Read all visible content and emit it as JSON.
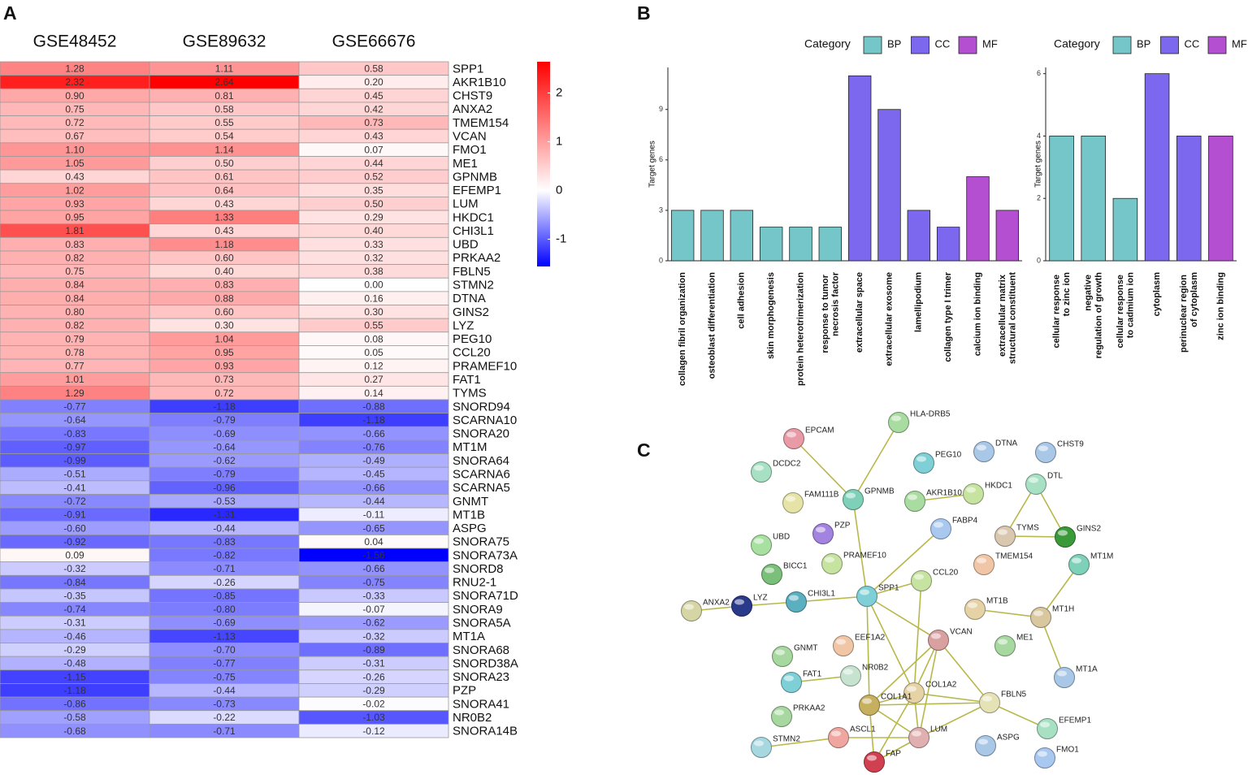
{
  "chart_data": [
    {
      "type": "heatmap",
      "panel": "A",
      "x": [
        "GSE48452",
        "GSE89632",
        "GSE66676"
      ],
      "y": [
        "SPP1",
        "AKR1B10",
        "CHST9",
        "ANXA2",
        "TMEM154",
        "VCAN",
        "FMO1",
        "ME1",
        "GPNMB",
        "EFEMP1",
        "LUM",
        "HKDC1",
        "CHI3L1",
        "UBD",
        "PRKAA2",
        "FBLN5",
        "STMN2",
        "DTNA",
        "GINS2",
        "LYZ",
        "PEG10",
        "CCL20",
        "PRAMEF10",
        "FAT1",
        "TYMS",
        "SNORD94",
        "SCARNA10",
        "SNORA20",
        "MT1M",
        "SNORA64",
        "SCARNA6",
        "SCARNA5",
        "GNMT",
        "MT1B",
        "ASPG",
        "SNORA75",
        "SNORA73A",
        "SNORD8",
        "RNU2-1",
        "SNORA71D",
        "SNORA9",
        "SNORA5A",
        "MT1A",
        "SNORA68",
        "SNORD38A",
        "SNORA23",
        "PZP",
        "SNORA41",
        "NR0B2",
        "SNORA14B"
      ],
      "values": [
        [
          1.28,
          1.11,
          0.58
        ],
        [
          2.32,
          2.64,
          0.2
        ],
        [
          0.9,
          0.81,
          0.45
        ],
        [
          0.75,
          0.58,
          0.42
        ],
        [
          0.72,
          0.55,
          0.73
        ],
        [
          0.67,
          0.54,
          0.43
        ],
        [
          1.1,
          1.14,
          0.07
        ],
        [
          1.05,
          0.5,
          0.44
        ],
        [
          0.43,
          0.61,
          0.52
        ],
        [
          1.02,
          0.64,
          0.35
        ],
        [
          0.93,
          0.43,
          0.5
        ],
        [
          0.95,
          1.33,
          0.29
        ],
        [
          1.81,
          0.43,
          0.4
        ],
        [
          0.83,
          1.18,
          0.33
        ],
        [
          0.82,
          0.6,
          0.32
        ],
        [
          0.75,
          0.4,
          0.38
        ],
        [
          0.84,
          0.83,
          0
        ],
        [
          0.84,
          0.88,
          0.16
        ],
        [
          0.8,
          0.6,
          0.3
        ],
        [
          0.82,
          0.3,
          0.55
        ],
        [
          0.79,
          1.04,
          0.08
        ],
        [
          0.78,
          0.95,
          0.05
        ],
        [
          0.77,
          0.93,
          0.12
        ],
        [
          1.01,
          0.73,
          0.27
        ],
        [
          1.29,
          0.72,
          0.14
        ],
        [
          -0.77,
          -1.18,
          -0.88
        ],
        [
          -0.64,
          -0.79,
          -1.18
        ],
        [
          -0.83,
          -0.69,
          -0.66
        ],
        [
          -0.97,
          -0.64,
          -0.76
        ],
        [
          -0.99,
          -0.62,
          -0.49
        ],
        [
          -0.51,
          -0.79,
          -0.45
        ],
        [
          -0.41,
          -0.96,
          -0.66
        ],
        [
          -0.72,
          -0.53,
          -0.44
        ],
        [
          -0.91,
          -1.31,
          -0.11
        ],
        [
          -0.6,
          -0.44,
          -0.65
        ],
        [
          -0.92,
          -0.83,
          0.04
        ],
        [
          0.09,
          -0.82,
          -1.56
        ],
        [
          -0.32,
          -0.71,
          -0.66
        ],
        [
          -0.84,
          -0.26,
          -0.75
        ],
        [
          -0.35,
          -0.85,
          -0.33
        ],
        [
          -0.74,
          -0.8,
          -0.07
        ],
        [
          -0.31,
          -0.69,
          -0.62
        ],
        [
          -0.46,
          -1.13,
          -0.32
        ],
        [
          -0.29,
          -0.7,
          -0.89
        ],
        [
          -0.48,
          -0.77,
          -0.31
        ],
        [
          -1.15,
          -0.75,
          -0.26
        ],
        [
          -1.18,
          -0.44,
          -0.29
        ],
        [
          -0.86,
          -0.73,
          -0.02
        ],
        [
          -0.58,
          -0.22,
          -1.03
        ],
        [
          -0.68,
          -0.71,
          -0.12
        ]
      ],
      "value_labels": [
        [
          "1.28",
          "1.11",
          "0.58"
        ],
        [
          "2.32",
          "2.64",
          "0.20"
        ],
        [
          "0.90",
          "0.81",
          "0.45"
        ],
        [
          "0.75",
          "0.58",
          "0.42"
        ],
        [
          "0.72",
          "0.55",
          "0.73"
        ],
        [
          "0.67",
          "0.54",
          "0.43"
        ],
        [
          "1.10",
          "1.14",
          "0.07"
        ],
        [
          "1.05",
          "0.50",
          "0.44"
        ],
        [
          "0.43",
          "0.61",
          "0.52"
        ],
        [
          "1.02",
          "0.64",
          "0.35"
        ],
        [
          "0.93",
          "0.43",
          "0.50"
        ],
        [
          "0.95",
          "1.33",
          "0.29"
        ],
        [
          "1.81",
          "0.43",
          "0.40"
        ],
        [
          "0.83",
          "1.18",
          "0.33"
        ],
        [
          "0.82",
          "0.60",
          "0.32"
        ],
        [
          "0.75",
          "0.40",
          "0.38"
        ],
        [
          "0.84",
          "0.83",
          "0.00"
        ],
        [
          "0.84",
          "0.88",
          "0.16"
        ],
        [
          "0.80",
          "0.60",
          "0.30"
        ],
        [
          "0.82",
          "0.30",
          "0.55"
        ],
        [
          "0.79",
          "1.04",
          "0.08"
        ],
        [
          "0.78",
          "0.95",
          "0.05"
        ],
        [
          "0.77",
          "0.93",
          "0.12"
        ],
        [
          "1.01",
          "0.73",
          "0.27"
        ],
        [
          "1.29",
          "0.72",
          "0.14"
        ],
        [
          "-0.77",
          "-1.18",
          "-0.88"
        ],
        [
          "-0.64",
          "-0.79",
          "-1.18"
        ],
        [
          "-0.83",
          "-0.69",
          "-0.66"
        ],
        [
          "-0.97",
          "-0.64",
          "-0.76"
        ],
        [
          "-0.99",
          "-0.62",
          "-0.49"
        ],
        [
          "-0.51",
          "-0.79",
          "-0.45"
        ],
        [
          "-0.41",
          "-0.96",
          "-0.66"
        ],
        [
          "-0.72",
          "-0.53",
          "-0.44"
        ],
        [
          "-0.91",
          "-1.31",
          "-0.11"
        ],
        [
          "-0.60",
          "-0.44",
          "-0.65"
        ],
        [
          "-0.92",
          "-0.83",
          "0.04"
        ],
        [
          "0.09",
          "-0.82",
          "-1.56"
        ],
        [
          "-0.32",
          "-0.71",
          "-0.66"
        ],
        [
          "-0.84",
          "-0.26",
          "-0.75"
        ],
        [
          "-0.35",
          "-0.85",
          "-0.33"
        ],
        [
          "-0.74",
          "-0.80",
          "-0.07"
        ],
        [
          "-0.31",
          "-0.69",
          "-0.62"
        ],
        [
          "-0.46",
          "-1.13",
          "-0.32"
        ],
        [
          "-0.29",
          "-0.70",
          "-0.89"
        ],
        [
          "-0.48",
          "-0.77",
          "-0.31"
        ],
        [
          "-1.15",
          "-0.75",
          "-0.26"
        ],
        [
          "-1.18",
          "-0.44",
          "-0.29"
        ],
        [
          "-0.86",
          "-0.73",
          "-0.02"
        ],
        [
          "-0.58",
          "-0.22",
          "-1.03"
        ],
        [
          "-0.68",
          "-0.71",
          "-0.12"
        ]
      ],
      "zlim": [
        -1.56,
        2.64
      ],
      "zticks": [
        -1,
        0,
        1,
        2
      ],
      "colors": [
        "#0000ff",
        "#ffffff",
        "#ff0000"
      ]
    },
    {
      "type": "bar",
      "panel": "B",
      "ylabel": "Target genes",
      "categories": [
        "collagen fibril organization",
        "osteoblast differentiation",
        "cell adhesion",
        "skin morphogenesis",
        "protein heterotrimerization",
        "response to tumor necrosis factor",
        "extracellular space",
        "extracellular exosome",
        "lamellipodium",
        "collagen type I trimer",
        "calcium ion binding",
        "extracellular matrix structural constituent"
      ],
      "values": [
        3,
        3,
        3,
        2,
        2,
        2,
        11,
        9,
        3,
        2,
        5,
        3
      ],
      "groups": [
        "BP",
        "BP",
        "BP",
        "BP",
        "BP",
        "BP",
        "CC",
        "CC",
        "CC",
        "CC",
        "MF",
        "MF"
      ],
      "legend_title": "Category",
      "legend": [
        "BP",
        "CC",
        "MF"
      ],
      "legend_colors": [
        "#74c6c9",
        "#7b68ee",
        "#b44fd1"
      ],
      "ylim": [
        0,
        11.5
      ],
      "yticks": [
        0,
        3,
        6,
        9
      ]
    },
    {
      "type": "bar",
      "ylabel": "Target genes",
      "categories": [
        "cellular response to zinc ion",
        "negative regulation of growth",
        "cellular response to cadmium ion",
        "cytoplasm",
        "perinuclear region of cytoplasm",
        "zinc ion binding"
      ],
      "values": [
        4,
        4,
        2,
        6,
        4,
        4
      ],
      "groups": [
        "BP",
        "BP",
        "BP",
        "CC",
        "CC",
        "MF"
      ],
      "legend_title": "Category",
      "legend": [
        "BP",
        "CC",
        "MF"
      ],
      "legend_colors": [
        "#74c6c9",
        "#7b68ee",
        "#b44fd1"
      ],
      "ylim": [
        0,
        6.2
      ],
      "yticks": [
        0,
        2,
        4,
        6
      ]
    },
    {
      "type": "network",
      "panel": "C",
      "edge_color": "#b8b84a",
      "nodes": [
        {
          "label": "EPCAM",
          "color": "#e89aa6"
        },
        {
          "label": "HLA-DRB5",
          "color": "#a9dca0"
        },
        {
          "label": "DCDC2",
          "color": "#a7e0c2"
        },
        {
          "label": "PEG10",
          "color": "#7fd0d6"
        },
        {
          "label": "DTNA",
          "color": "#a9c8e8"
        },
        {
          "label": "CHST9",
          "color": "#a9c8e8"
        },
        {
          "label": "FAM111B",
          "color": "#e5e3a6"
        },
        {
          "label": "GPNMB",
          "color": "#7fd0b8"
        },
        {
          "label": "AKR1B10",
          "color": "#a9dca0"
        },
        {
          "label": "HKDC1",
          "color": "#c6e3a0"
        },
        {
          "label": "DTL",
          "color": "#a7e0c2"
        },
        {
          "label": "PZP",
          "color": "#a383e0"
        },
        {
          "label": "FABP4",
          "color": "#a9c8f0"
        },
        {
          "label": "UBD",
          "color": "#a7e0a0"
        },
        {
          "label": "TYMS",
          "color": "#d9c7b0"
        },
        {
          "label": "GINS2",
          "color": "#3a9a3a"
        },
        {
          "label": "PRAMEF10",
          "color": "#c6e3a0"
        },
        {
          "label": "TMEM154",
          "color": "#f0c6a6"
        },
        {
          "label": "MT1M",
          "color": "#7fd0b8"
        },
        {
          "label": "BICC1",
          "color": "#7ac07a"
        },
        {
          "label": "CCL20",
          "color": "#c6e3a0"
        },
        {
          "label": "SPP1",
          "color": "#7fd0d6"
        },
        {
          "label": "CHI3L1",
          "color": "#5ab0c0"
        },
        {
          "label": "LYZ",
          "color": "#2a3a8a"
        },
        {
          "label": "ANXA2",
          "color": "#d5d5a6"
        },
        {
          "label": "MT1B",
          "color": "#e5d3a6"
        },
        {
          "label": "MT1H",
          "color": "#d9c7a0"
        },
        {
          "label": "VCAN",
          "color": "#d9a0a0"
        },
        {
          "label": "ME1",
          "color": "#a7d8a0"
        },
        {
          "label": "GNMT",
          "color": "#a7d8a0"
        },
        {
          "label": "EEF1A2",
          "color": "#f0c6a6"
        },
        {
          "label": "MT1A",
          "color": "#a9c8e8"
        },
        {
          "label": "FAT1",
          "color": "#7fd0d6"
        },
        {
          "label": "NR0B2",
          "color": "#c6e3d0"
        },
        {
          "label": "COL1A2",
          "color": "#e5d3a6"
        },
        {
          "label": "COL1A1",
          "color": "#c6b060"
        },
        {
          "label": "FBLN5",
          "color": "#e5e3b6"
        },
        {
          "label": "PRKAA2",
          "color": "#a7d8a0"
        },
        {
          "label": "EFEMP1",
          "color": "#a7e0c2"
        },
        {
          "label": "ASCL1",
          "color": "#f0a6a0"
        },
        {
          "label": "LUM",
          "color": "#e0b0b0"
        },
        {
          "label": "ASPG",
          "color": "#a9c8e8"
        },
        {
          "label": "STMN2",
          "color": "#a7d8e0"
        },
        {
          "label": "FMO1",
          "color": "#a9c8f0"
        },
        {
          "label": "FAP",
          "color": "#d04050"
        }
      ],
      "edges": [
        [
          0,
          7
        ],
        [
          1,
          7
        ],
        [
          7,
          21
        ],
        [
          8,
          9
        ],
        [
          10,
          14
        ],
        [
          10,
          15
        ],
        [
          14,
          15
        ],
        [
          12,
          21
        ],
        [
          21,
          22
        ],
        [
          22,
          23
        ],
        [
          23,
          24
        ],
        [
          21,
          20
        ],
        [
          21,
          27
        ],
        [
          21,
          35
        ],
        [
          21,
          34
        ],
        [
          18,
          26
        ],
        [
          25,
          26
        ],
        [
          26,
          31
        ],
        [
          32,
          33
        ],
        [
          27,
          35
        ],
        [
          27,
          34
        ],
        [
          27,
          40
        ],
        [
          27,
          36
        ],
        [
          35,
          34
        ],
        [
          35,
          40
        ],
        [
          34,
          40
        ],
        [
          35,
          36
        ],
        [
          34,
          36
        ],
        [
          40,
          36
        ],
        [
          35,
          44
        ],
        [
          34,
          44
        ],
        [
          40,
          44
        ],
        [
          39,
          42
        ],
        [
          36,
          38
        ],
        [
          39,
          40
        ],
        [
          20,
          34
        ]
      ]
    }
  ]
}
